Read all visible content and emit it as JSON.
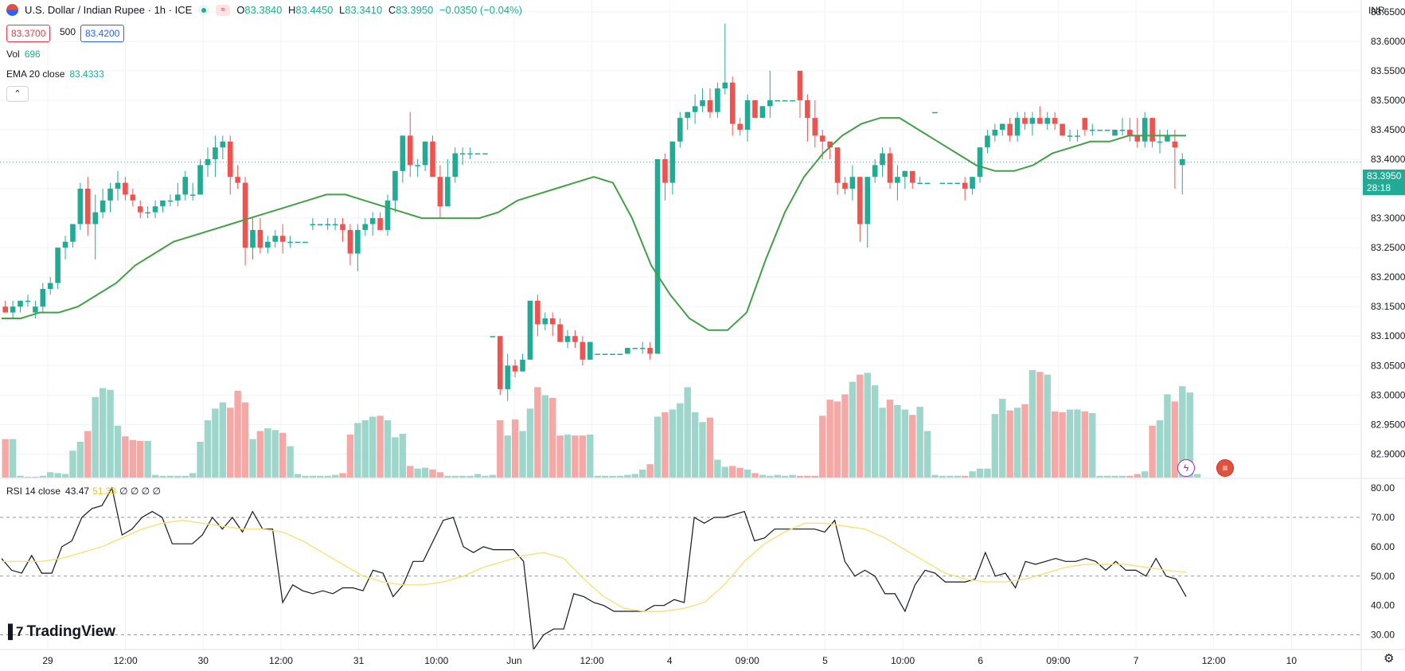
{
  "header": {
    "symbol_title": "U.S. Dollar / Indian Rupee · 1h · ICE",
    "ohlc": [
      {
        "k": "O",
        "v": "83.3840"
      },
      {
        "k": "H",
        "v": "83.4450"
      },
      {
        "k": "L",
        "v": "83.3410"
      },
      {
        "k": "C",
        "v": "83.3950"
      }
    ],
    "change": "−0.0350 (−0.04%)",
    "bid": "83.3700",
    "spread": "500",
    "ask": "83.4200"
  },
  "indicators": {
    "vol_label": "Vol",
    "vol_value": "696",
    "ema_label": "EMA 20 close",
    "ema_value": "83.4333",
    "rsi_label": "RSI 14 close",
    "rsi_value": "43.47",
    "rsi_ma_value": "51.33",
    "rsi_extra": "∅ ∅ ∅ ∅"
  },
  "currency": "INR",
  "last_price_label": {
    "price": "83.3950",
    "countdown": "28:18"
  },
  "logo_text": "TradingView",
  "colors": {
    "up": "#22ab94",
    "down": "#ef5350",
    "ema": "#43a047",
    "rsi": "#131722",
    "rsi_ma": "#f5e27a"
  },
  "icons": {
    "collapse": "chevron-up-icon",
    "settings": "gear-icon",
    "event1": "lightning-icon",
    "event2": "us-flag-icon"
  },
  "chart_data": {
    "type": "candlestick",
    "price_axis": {
      "ticks": [
        "83.6500",
        "83.6000",
        "83.5500",
        "83.5000",
        "83.4500",
        "83.4000",
        "83.3500",
        "83.3000",
        "83.2500",
        "83.2000",
        "83.1500",
        "83.1000",
        "83.0500",
        "83.0000",
        "82.9500",
        "82.9000"
      ],
      "range": [
        82.86,
        83.67
      ]
    },
    "rsi_axis": {
      "ticks": [
        "80.00",
        "70.00",
        "60.00",
        "50.00",
        "40.00",
        "30.00"
      ],
      "range": [
        25,
        83
      ],
      "bands": [
        70,
        50,
        30
      ]
    },
    "time_axis": [
      "29",
      "12:00",
      "30",
      "12:00",
      "31",
      "10:00",
      "Jun",
      "12:00",
      "4",
      "09:00",
      "5",
      "10:00",
      "6",
      "09:00",
      "7",
      "12:00",
      "10"
    ],
    "ohlc": [
      [
        83.15,
        83.16,
        83.14,
        83.14
      ],
      [
        83.14,
        83.16,
        83.13,
        83.15
      ],
      [
        83.15,
        83.16,
        83.14,
        83.16
      ],
      [
        83.16,
        83.17,
        83.15,
        83.16
      ],
      [
        83.14,
        83.16,
        83.13,
        83.15
      ],
      [
        83.15,
        83.19,
        83.14,
        83.18
      ],
      [
        83.18,
        83.2,
        83.17,
        83.19
      ],
      [
        83.19,
        83.25,
        83.18,
        83.25
      ],
      [
        83.25,
        83.27,
        83.23,
        83.26
      ],
      [
        83.26,
        83.29,
        83.25,
        83.29
      ],
      [
        83.29,
        83.36,
        83.28,
        83.35
      ],
      [
        83.35,
        83.37,
        83.27,
        83.29
      ],
      [
        83.29,
        83.34,
        83.23,
        83.31
      ],
      [
        83.31,
        83.35,
        83.3,
        83.33
      ],
      [
        83.33,
        83.36,
        83.31,
        83.35
      ],
      [
        83.35,
        83.38,
        83.33,
        83.36
      ],
      [
        83.36,
        83.37,
        83.33,
        83.34
      ],
      [
        83.34,
        83.35,
        83.32,
        83.33
      ],
      [
        83.32,
        83.33,
        83.3,
        83.31
      ],
      [
        83.31,
        83.32,
        83.3,
        83.31
      ],
      [
        83.31,
        83.33,
        83.3,
        83.32
      ],
      [
        83.32,
        83.33,
        83.31,
        83.33
      ],
      [
        83.33,
        83.34,
        83.32,
        83.33
      ],
      [
        83.33,
        83.36,
        83.32,
        83.34
      ],
      [
        83.34,
        83.38,
        83.33,
        83.37
      ],
      [
        83.34,
        83.36,
        83.33,
        83.34
      ],
      [
        83.34,
        83.4,
        83.34,
        83.39
      ],
      [
        83.39,
        83.42,
        83.37,
        83.4
      ],
      [
        83.4,
        83.44,
        83.37,
        83.42
      ],
      [
        83.42,
        83.44,
        83.4,
        83.43
      ],
      [
        83.43,
        83.44,
        83.34,
        83.37
      ],
      [
        83.37,
        83.39,
        83.35,
        83.36
      ],
      [
        83.36,
        83.37,
        83.22,
        83.25
      ],
      [
        83.25,
        83.3,
        83.23,
        83.28
      ],
      [
        83.28,
        83.3,
        83.24,
        83.25
      ],
      [
        83.25,
        83.27,
        83.24,
        83.26
      ],
      [
        83.26,
        83.28,
        83.25,
        83.27
      ],
      [
        83.27,
        83.29,
        83.24,
        83.26
      ],
      [
        83.26,
        83.27,
        83.25,
        83.26
      ],
      [
        83.26,
        83.26,
        83.26,
        83.26
      ],
      [
        83.26,
        83.26,
        83.26,
        83.26
      ],
      [
        83.29,
        83.3,
        83.28,
        83.29
      ],
      [
        83.29,
        83.29,
        83.29,
        83.29
      ],
      [
        83.29,
        83.3,
        83.28,
        83.29
      ],
      [
        83.29,
        83.3,
        83.28,
        83.29
      ],
      [
        83.29,
        83.3,
        83.26,
        83.28
      ],
      [
        83.28,
        83.29,
        83.22,
        83.24
      ],
      [
        83.24,
        83.29,
        83.21,
        83.28
      ],
      [
        83.28,
        83.3,
        83.27,
        83.29
      ],
      [
        83.29,
        83.31,
        83.27,
        83.3
      ],
      [
        83.3,
        83.31,
        83.28,
        83.28
      ],
      [
        83.28,
        83.34,
        83.27,
        83.33
      ],
      [
        83.33,
        83.38,
        83.31,
        83.38
      ],
      [
        83.38,
        83.44,
        83.36,
        83.44
      ],
      [
        83.44,
        83.48,
        83.37,
        83.39
      ],
      [
        83.39,
        83.4,
        83.37,
        83.39
      ],
      [
        83.39,
        83.43,
        83.38,
        83.43
      ],
      [
        83.43,
        83.44,
        83.37,
        83.37
      ],
      [
        83.37,
        83.39,
        83.3,
        83.32
      ],
      [
        83.32,
        83.4,
        83.32,
        83.37
      ],
      [
        83.37,
        83.42,
        83.36,
        83.41
      ],
      [
        83.41,
        83.42,
        83.39,
        83.41
      ],
      [
        83.41,
        83.42,
        83.4,
        83.41
      ],
      [
        83.41,
        83.41,
        83.41,
        83.41
      ],
      [
        83.41,
        83.41,
        83.41,
        83.41
      ],
      [
        83.1,
        83.1,
        83.1,
        83.1
      ],
      [
        83.1,
        83.1,
        83.0,
        83.01
      ],
      [
        83.01,
        83.07,
        82.99,
        83.05
      ],
      [
        83.05,
        83.06,
        83.03,
        83.04
      ],
      [
        83.04,
        83.07,
        83.04,
        83.06
      ],
      [
        83.06,
        83.16,
        83.06,
        83.16
      ],
      [
        83.16,
        83.17,
        83.1,
        83.12
      ],
      [
        83.12,
        83.14,
        83.11,
        83.13
      ],
      [
        83.13,
        83.14,
        83.1,
        83.12
      ],
      [
        83.12,
        83.13,
        83.09,
        83.09
      ],
      [
        83.09,
        83.11,
        83.08,
        83.1
      ],
      [
        83.1,
        83.11,
        83.08,
        83.09
      ],
      [
        83.09,
        83.1,
        83.05,
        83.06
      ],
      [
        83.06,
        83.09,
        83.06,
        83.09
      ],
      [
        83.07,
        83.07,
        83.07,
        83.07
      ],
      [
        83.07,
        83.07,
        83.07,
        83.07
      ],
      [
        83.07,
        83.07,
        83.07,
        83.07
      ],
      [
        83.07,
        83.07,
        83.07,
        83.07
      ],
      [
        83.07,
        83.08,
        83.07,
        83.08
      ],
      [
        83.08,
        83.08,
        83.08,
        83.08
      ],
      [
        83.08,
        83.09,
        83.07,
        83.08
      ],
      [
        83.08,
        83.09,
        83.06,
        83.07
      ],
      [
        83.07,
        83.4,
        83.07,
        83.4
      ],
      [
        83.4,
        83.41,
        83.33,
        83.36
      ],
      [
        83.36,
        83.43,
        83.34,
        83.43
      ],
      [
        83.43,
        83.48,
        83.42,
        83.47
      ],
      [
        83.47,
        83.48,
        83.45,
        83.48
      ],
      [
        83.48,
        83.51,
        83.46,
        83.49
      ],
      [
        83.49,
        83.52,
        83.48,
        83.5
      ],
      [
        83.5,
        83.52,
        83.47,
        83.48
      ],
      [
        83.48,
        83.53,
        83.47,
        83.52
      ],
      [
        83.52,
        83.63,
        83.51,
        83.53
      ],
      [
        83.53,
        83.54,
        83.44,
        83.46
      ],
      [
        83.46,
        83.47,
        83.44,
        83.45
      ],
      [
        83.45,
        83.51,
        83.43,
        83.5
      ],
      [
        83.5,
        83.5,
        83.47,
        83.47
      ],
      [
        83.47,
        83.49,
        83.47,
        83.49
      ],
      [
        83.49,
        83.55,
        83.47,
        83.5
      ],
      [
        83.5,
        83.5,
        83.5,
        83.5
      ],
      [
        83.5,
        83.5,
        83.5,
        83.5
      ],
      [
        83.5,
        83.5,
        83.5,
        83.5
      ],
      [
        83.55,
        83.55,
        83.47,
        83.5
      ],
      [
        83.5,
        83.51,
        83.43,
        83.47
      ],
      [
        83.47,
        83.5,
        83.42,
        83.44
      ],
      [
        83.44,
        83.45,
        83.4,
        83.43
      ],
      [
        83.43,
        83.43,
        83.4,
        83.42
      ],
      [
        83.42,
        83.42,
        83.34,
        83.36
      ],
      [
        83.36,
        83.37,
        83.34,
        83.35
      ],
      [
        83.35,
        83.39,
        83.33,
        83.37
      ],
      [
        83.37,
        83.37,
        83.26,
        83.29
      ],
      [
        83.29,
        83.37,
        83.25,
        83.37
      ],
      [
        83.37,
        83.4,
        83.36,
        83.39
      ],
      [
        83.39,
        83.42,
        83.37,
        83.41
      ],
      [
        83.41,
        83.42,
        83.35,
        83.36
      ],
      [
        83.36,
        83.39,
        83.33,
        83.37
      ],
      [
        83.37,
        83.38,
        83.35,
        83.38
      ],
      [
        83.38,
        83.38,
        83.35,
        83.36
      ],
      [
        83.36,
        83.37,
        83.36,
        83.36
      ],
      [
        83.36,
        83.36,
        83.36,
        83.36
      ],
      [
        83.48,
        83.48,
        83.48,
        83.48
      ],
      [
        83.36,
        83.36,
        83.36,
        83.36
      ],
      [
        83.36,
        83.36,
        83.36,
        83.36
      ],
      [
        83.36,
        83.36,
        83.36,
        83.36
      ],
      [
        83.36,
        83.37,
        83.33,
        83.35
      ],
      [
        83.35,
        83.37,
        83.34,
        83.37
      ],
      [
        83.37,
        83.42,
        83.36,
        83.42
      ],
      [
        83.42,
        83.45,
        83.41,
        83.44
      ],
      [
        83.44,
        83.46,
        83.43,
        83.45
      ],
      [
        83.45,
        83.46,
        83.44,
        83.46
      ],
      [
        83.46,
        83.47,
        83.43,
        83.44
      ],
      [
        83.44,
        83.48,
        83.43,
        83.47
      ],
      [
        83.47,
        83.48,
        83.45,
        83.46
      ],
      [
        83.46,
        83.48,
        83.44,
        83.47
      ],
      [
        83.47,
        83.49,
        83.46,
        83.46
      ],
      [
        83.46,
        83.48,
        83.45,
        83.47
      ],
      [
        83.47,
        83.48,
        83.45,
        83.46
      ],
      [
        83.46,
        83.46,
        83.44,
        83.44
      ],
      [
        83.44,
        83.45,
        83.43,
        83.44
      ],
      [
        83.44,
        83.45,
        83.43,
        83.44
      ],
      [
        83.47,
        83.47,
        83.44,
        83.45
      ],
      [
        83.45,
        83.46,
        83.44,
        83.45
      ],
      [
        83.45,
        83.45,
        83.45,
        83.45
      ],
      [
        83.45,
        83.45,
        83.45,
        83.45
      ],
      [
        83.44,
        83.45,
        83.44,
        83.45
      ],
      [
        83.45,
        83.47,
        83.44,
        83.45
      ],
      [
        83.45,
        83.47,
        83.43,
        83.44
      ],
      [
        83.44,
        83.47,
        83.42,
        83.43
      ],
      [
        83.43,
        83.48,
        83.42,
        83.47
      ],
      [
        83.47,
        83.47,
        83.42,
        83.43
      ],
      [
        83.43,
        83.45,
        83.41,
        83.43
      ],
      [
        83.43,
        83.45,
        83.43,
        83.44
      ],
      [
        83.43,
        83.45,
        83.35,
        83.42
      ],
      [
        83.39,
        83.41,
        83.34,
        83.4
      ]
    ],
    "volume": [
      430,
      430,
      20,
      10,
      10,
      20,
      60,
      50,
      40,
      300,
      400,
      520,
      900,
      1000,
      980,
      580,
      460,
      420,
      410,
      410,
      30,
      20,
      20,
      20,
      20,
      50,
      400,
      640,
      770,
      840,
      780,
      970,
      840,
      430,
      520,
      550,
      530,
      500,
      350,
      40,
      20,
      20,
      20,
      20,
      30,
      50,
      480,
      610,
      640,
      680,
      690,
      640,
      450,
      490,
      130,
      100,
      110,
      90,
      60,
      20,
      20,
      20,
      20,
      40,
      20,
      30,
      640,
      470,
      650,
      520,
      770,
      1010,
      920,
      890,
      470,
      480,
      470,
      470,
      480,
      20,
      20,
      20,
      20,
      30,
      40,
      90,
      150,
      680,
      730,
      760,
      830,
      1010,
      730,
      620,
      670,
      200,
      120,
      130,
      110,
      90,
      50,
      30,
      20,
      30,
      20,
      30,
      20,
      20,
      20,
      690,
      870,
      850,
      930,
      1070,
      1150,
      1170,
      1030,
      780,
      870,
      810,
      760,
      700,
      790,
      520,
      30,
      20,
      20,
      20,
      20,
      70,
      100,
      100,
      710,
      880,
      750,
      780,
      820,
      1200,
      1180,
      1150,
      740,
      730,
      760,
      760,
      740,
      720,
      20,
      20,
      20,
      20,
      20,
      40,
      70,
      580,
      640,
      930,
      850,
      1020,
      950,
      40
    ],
    "ema20": [
      83.13,
      83.13,
      83.14,
      83.14,
      83.15,
      83.17,
      83.19,
      83.22,
      83.24,
      83.26,
      83.27,
      83.28,
      83.29,
      83.3,
      83.31,
      83.32,
      83.33,
      83.34,
      83.34,
      83.33,
      83.32,
      83.31,
      83.3,
      83.3,
      83.3,
      83.3,
      83.31,
      83.33,
      83.34,
      83.35,
      83.36,
      83.37,
      83.36,
      83.3,
      83.22,
      83.17,
      83.13,
      83.11,
      83.11,
      83.14,
      83.23,
      83.31,
      83.37,
      83.41,
      83.44,
      83.46,
      83.47,
      83.47,
      83.45,
      83.43,
      83.41,
      83.39,
      83.38,
      83.38,
      83.39,
      83.41,
      83.42,
      83.43,
      83.43,
      83.44,
      83.44,
      83.44,
      83.44
    ],
    "rsi": [
      56,
      52,
      51,
      57,
      51,
      51,
      60,
      62,
      70,
      73,
      74,
      80,
      64,
      66,
      70,
      72,
      70,
      61,
      61,
      61,
      64,
      70,
      66,
      70,
      65,
      72,
      66,
      66,
      41,
      47,
      45,
      44,
      45,
      44,
      46,
      46,
      45,
      52,
      51,
      43,
      47,
      55,
      55,
      62,
      69,
      70,
      60,
      58,
      60,
      59,
      59,
      59,
      55,
      25,
      30,
      32,
      32,
      44,
      43,
      41,
      40,
      38,
      38,
      38,
      38,
      40,
      40,
      42,
      41,
      70,
      68,
      70,
      70,
      71,
      72,
      62,
      63,
      66,
      66,
      66,
      66,
      66,
      65,
      69,
      55,
      50,
      52,
      50,
      44,
      44,
      38,
      47,
      52,
      51,
      48,
      48,
      48,
      49,
      58,
      50,
      51,
      46,
      55,
      54,
      55,
      56,
      55,
      55,
      56,
      55,
      52,
      55,
      52,
      52,
      50,
      56,
      50,
      49,
      43
    ],
    "rsi_ma": [
      55,
      55,
      55,
      56,
      58,
      60,
      63,
      66,
      68,
      69,
      68,
      67,
      66,
      66,
      65,
      62,
      58,
      54,
      50,
      48,
      47,
      47,
      48,
      50,
      53,
      55,
      57,
      58,
      56,
      49,
      43,
      39,
      38,
      38,
      39,
      41,
      47,
      55,
      61,
      65,
      68,
      68,
      67,
      66,
      63,
      59,
      55,
      51,
      49,
      48,
      48,
      49,
      51,
      53,
      54,
      54,
      54,
      53,
      52,
      51.33
    ]
  }
}
